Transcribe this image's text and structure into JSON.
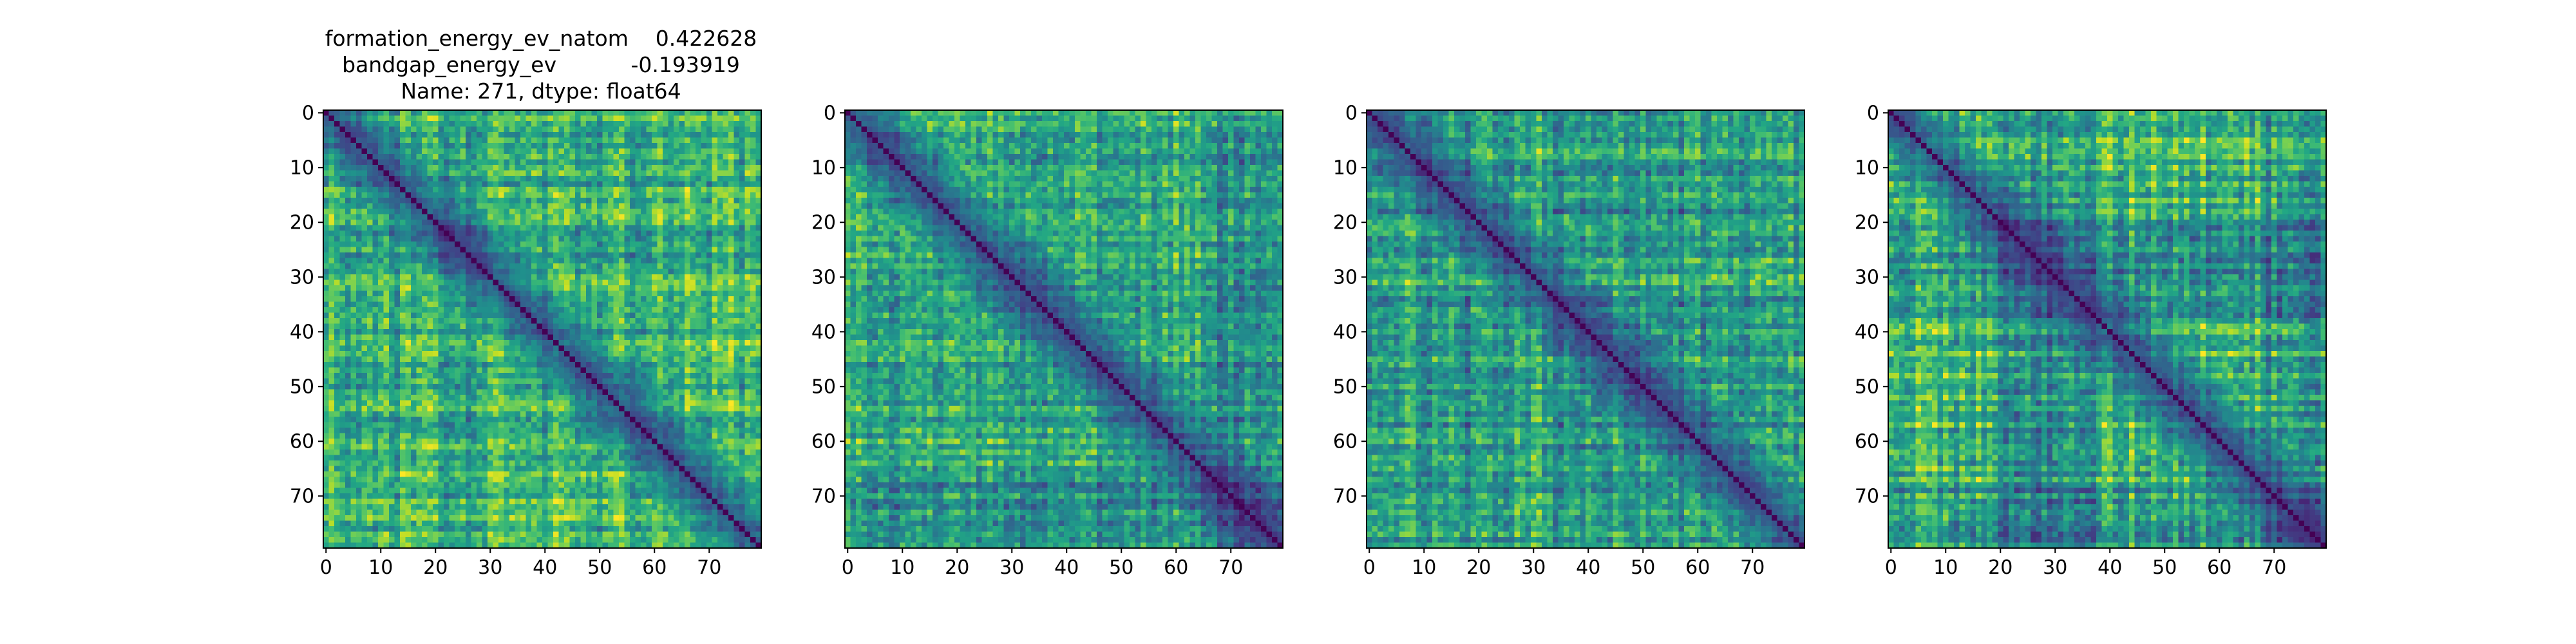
{
  "figure": {
    "title_lines": [
      "formation_energy_ev_natom    0.422628",
      "bandgap_energy_ev           -0.193919",
      "Name: 271, dtype: float64"
    ]
  },
  "chart_data": [
    {
      "type": "heatmap",
      "colormap": "viridis",
      "matrix_size": 80,
      "xlim": [
        0,
        79
      ],
      "ylim": [
        79,
        0
      ],
      "x_ticks": [
        0,
        10,
        20,
        30,
        40,
        50,
        60,
        70
      ],
      "y_ticks": [
        0,
        10,
        20,
        30,
        40,
        50,
        60,
        70
      ],
      "x_tick_labels": [
        "0",
        "10",
        "20",
        "30",
        "40",
        "50",
        "60",
        "70"
      ],
      "y_tick_labels": [
        "0",
        "10",
        "20",
        "30",
        "40",
        "50",
        "60",
        "70"
      ],
      "diagonal_value": 0,
      "value_range": [
        0,
        1
      ],
      "block_boundaries": [
        15,
        27,
        38,
        50,
        62
      ],
      "seed": 271
    },
    {
      "type": "heatmap",
      "colormap": "viridis",
      "matrix_size": 80,
      "xlim": [
        0,
        79
      ],
      "ylim": [
        79,
        0
      ],
      "x_ticks": [
        0,
        10,
        20,
        30,
        40,
        50,
        60,
        70
      ],
      "y_ticks": [
        0,
        10,
        20,
        30,
        40,
        50,
        60,
        70
      ],
      "x_tick_labels": [
        "0",
        "10",
        "20",
        "30",
        "40",
        "50",
        "60",
        "70"
      ],
      "y_tick_labels": [
        "0",
        "10",
        "20",
        "30",
        "40",
        "50",
        "60",
        "70"
      ],
      "diagonal_value": 0,
      "value_range": [
        0,
        1
      ],
      "block_boundaries": [
        8,
        21,
        35,
        44,
        67
      ],
      "seed": 1271
    },
    {
      "type": "heatmap",
      "colormap": "viridis",
      "matrix_size": 80,
      "xlim": [
        0,
        79
      ],
      "ylim": [
        79,
        0
      ],
      "x_ticks": [
        0,
        10,
        20,
        30,
        40,
        50,
        60,
        70
      ],
      "y_ticks": [
        0,
        10,
        20,
        30,
        40,
        50,
        60,
        70
      ],
      "x_tick_labels": [
        "0",
        "10",
        "20",
        "30",
        "40",
        "50",
        "60",
        "70"
      ],
      "y_tick_labels": [
        "0",
        "10",
        "20",
        "30",
        "40",
        "50",
        "60",
        "70"
      ],
      "diagonal_value": 0,
      "value_range": [
        0,
        1
      ],
      "block_boundaries": [
        16,
        25,
        33,
        50,
        66
      ],
      "seed": 2271
    },
    {
      "type": "heatmap",
      "colormap": "viridis",
      "matrix_size": 80,
      "xlim": [
        0,
        79
      ],
      "ylim": [
        79,
        0
      ],
      "x_ticks": [
        0,
        10,
        20,
        30,
        40,
        50,
        60,
        70
      ],
      "y_ticks": [
        0,
        10,
        20,
        30,
        40,
        50,
        60,
        70
      ],
      "x_tick_labels": [
        "0",
        "10",
        "20",
        "30",
        "40",
        "50",
        "60",
        "70"
      ],
      "y_tick_labels": [
        "0",
        "10",
        "20",
        "30",
        "40",
        "50",
        "60",
        "70"
      ],
      "diagonal_value": 0,
      "value_range": [
        0,
        1
      ],
      "block_boundaries": [
        10,
        20,
        39,
        58,
        68
      ],
      "seed": 3271
    }
  ]
}
